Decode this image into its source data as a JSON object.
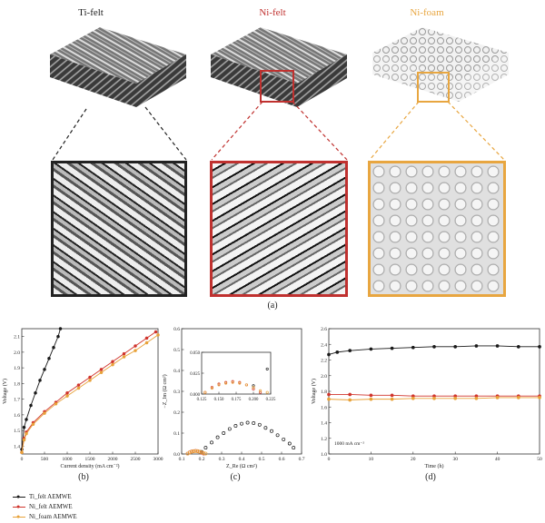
{
  "top": {
    "labels": [
      "Ti-felt",
      "Ni-felt",
      "Ni-foam"
    ],
    "label_colors": [
      "#2b2b2b",
      "#c0312f",
      "#e8a640"
    ],
    "caption": "(a)"
  },
  "legend": [
    {
      "name": "Ti_felt AEMWE",
      "color": "#1a1a1a"
    },
    {
      "name": "Ni_felt AEMWE",
      "color": "#d0342c"
    },
    {
      "name": "Ni_foam AEMWE",
      "color": "#e8a23a"
    }
  ],
  "chart_data": [
    {
      "type": "line",
      "caption": "(b)",
      "xlabel": "Current density (mA cm⁻²)",
      "ylabel": "Voltage (V)",
      "xlim": [
        0,
        3000
      ],
      "ylim": [
        1.35,
        2.15
      ],
      "xticks": [
        0,
        500,
        1000,
        1500,
        2000,
        2500,
        3000
      ],
      "yticks": [
        1.4,
        1.5,
        1.6,
        1.7,
        1.8,
        1.9,
        2.0,
        2.1
      ],
      "series": [
        {
          "name": "Ti_felt AEMWE",
          "x": [
            0,
            50,
            100,
            200,
            300,
            400,
            500,
            600,
            700,
            800,
            850
          ],
          "y": [
            1.38,
            1.52,
            1.57,
            1.66,
            1.74,
            1.82,
            1.89,
            1.96,
            2.03,
            2.1,
            2.15
          ]
        },
        {
          "name": "Ni_felt AEMWE",
          "x": [
            0,
            50,
            100,
            250,
            500,
            750,
            1000,
            1250,
            1500,
            1750,
            2000,
            2250,
            2500,
            2750,
            2950
          ],
          "y": [
            1.36,
            1.45,
            1.49,
            1.55,
            1.62,
            1.68,
            1.74,
            1.79,
            1.84,
            1.89,
            1.94,
            1.99,
            2.04,
            2.09,
            2.13
          ]
        },
        {
          "name": "Ni_foam AEMWE",
          "x": [
            0,
            50,
            100,
            250,
            500,
            750,
            1000,
            1250,
            1500,
            1750,
            2000,
            2250,
            2500,
            2750,
            3000
          ],
          "y": [
            1.36,
            1.44,
            1.48,
            1.54,
            1.61,
            1.67,
            1.72,
            1.77,
            1.82,
            1.87,
            1.92,
            1.97,
            2.01,
            2.06,
            2.11
          ]
        }
      ]
    },
    {
      "type": "scatter",
      "caption": "(c)",
      "xlabel": "Z_Re (Ω cm²)",
      "ylabel": "−Z_Im (Ω cm²)",
      "xlim": [
        0.1,
        0.7
      ],
      "ylim": [
        0,
        0.6
      ],
      "xticks": [
        0.1,
        0.2,
        0.3,
        0.4,
        0.5,
        0.6,
        0.7
      ],
      "yticks": [
        0.0,
        0.1,
        0.2,
        0.3,
        0.4,
        0.5,
        0.6
      ],
      "series": [
        {
          "name": "Ti_felt AEMWE",
          "x": [
            0.2,
            0.22,
            0.25,
            0.28,
            0.31,
            0.34,
            0.37,
            0.4,
            0.43,
            0.46,
            0.49,
            0.52,
            0.55,
            0.58,
            0.61,
            0.64,
            0.66
          ],
          "y": [
            0.01,
            0.03,
            0.055,
            0.08,
            0.1,
            0.12,
            0.135,
            0.145,
            0.15,
            0.148,
            0.14,
            0.125,
            0.11,
            0.09,
            0.07,
            0.05,
            0.03
          ]
        },
        {
          "name": "Ni_felt AEMWE",
          "x": [
            0.13,
            0.14,
            0.15,
            0.16,
            0.17,
            0.18,
            0.19,
            0.2,
            0.21
          ],
          "y": [
            0.002,
            0.008,
            0.012,
            0.014,
            0.015,
            0.014,
            0.011,
            0.006,
            0.002
          ]
        },
        {
          "name": "Ni_foam AEMWE",
          "x": [
            0.13,
            0.14,
            0.15,
            0.16,
            0.17,
            0.18,
            0.19,
            0.2,
            0.21,
            0.22
          ],
          "y": [
            0.002,
            0.007,
            0.011,
            0.013,
            0.014,
            0.013,
            0.011,
            0.008,
            0.004,
            0.002
          ]
        }
      ],
      "inset": {
        "xlim": [
          0.125,
          0.225
        ],
        "ylim": [
          0,
          0.05
        ],
        "xticks": [
          0.125,
          0.15,
          0.175,
          0.2,
          0.225
        ],
        "yticks": [
          0.0,
          0.025,
          0.05
        ]
      }
    },
    {
      "type": "scatter",
      "caption": "(d)",
      "xlabel": "Time (h)",
      "ylabel": "Voltage (V)",
      "annotation": "1000 mA cm⁻²",
      "xlim": [
        0,
        50
      ],
      "ylim": [
        1.0,
        2.6
      ],
      "xticks": [
        0,
        10,
        20,
        30,
        40,
        50
      ],
      "yticks": [
        1.0,
        1.2,
        1.4,
        1.6,
        1.8,
        2.0,
        2.2,
        2.4,
        2.6
      ],
      "series": [
        {
          "name": "Ti_felt AEMWE",
          "x": [
            0,
            2,
            5,
            10,
            15,
            20,
            25,
            30,
            35,
            40,
            45,
            50
          ],
          "y": [
            2.27,
            2.3,
            2.32,
            2.34,
            2.35,
            2.36,
            2.37,
            2.37,
            2.38,
            2.38,
            2.37,
            2.37
          ]
        },
        {
          "name": "Ni_felt AEMWE",
          "x": [
            0,
            5,
            10,
            15,
            20,
            25,
            30,
            35,
            40,
            45,
            50
          ],
          "y": [
            1.76,
            1.76,
            1.75,
            1.75,
            1.74,
            1.74,
            1.74,
            1.74,
            1.74,
            1.74,
            1.74
          ]
        },
        {
          "name": "Ni_foam AEMWE",
          "x": [
            0,
            5,
            10,
            15,
            20,
            25,
            30,
            35,
            40,
            45,
            50
          ],
          "y": [
            1.7,
            1.69,
            1.7,
            1.7,
            1.71,
            1.71,
            1.71,
            1.71,
            1.72,
            1.72,
            1.72
          ]
        }
      ]
    }
  ]
}
